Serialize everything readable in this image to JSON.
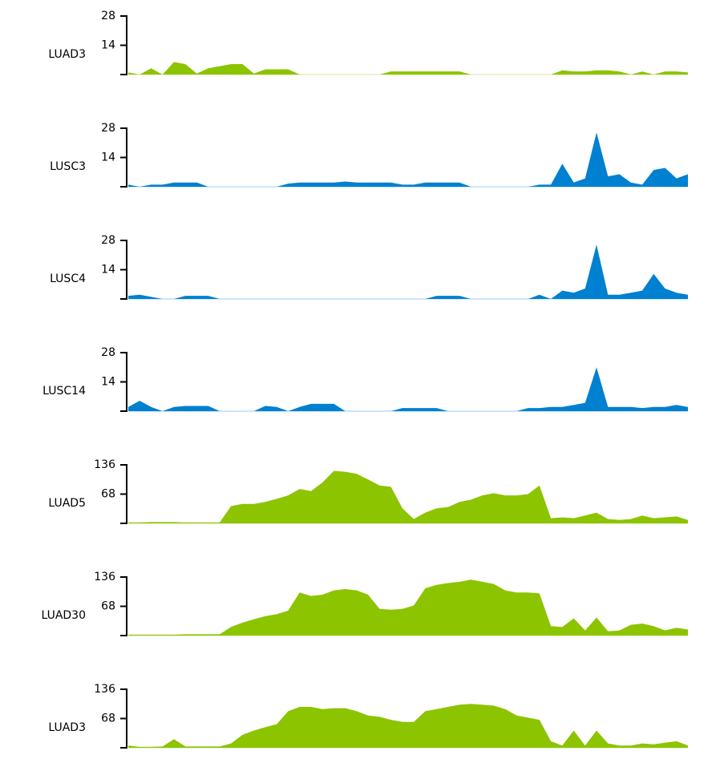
{
  "chart_data": [
    {
      "type": "area",
      "ylabel": "LUAD3",
      "color": "#8cc400",
      "ylim": [
        0,
        28
      ],
      "yticks": [
        14,
        28
      ],
      "values": [
        1,
        0,
        3,
        0,
        6,
        5,
        0.5,
        3,
        4,
        5,
        5,
        0.5,
        2.5,
        2.5,
        2.5,
        0,
        0,
        0,
        0,
        0,
        0,
        0,
        0,
        1.5,
        1.5,
        1.5,
        1.5,
        1.5,
        1.5,
        1.5,
        0,
        0,
        0,
        0,
        0,
        0,
        0,
        0,
        2,
        1.5,
        1.5,
        2,
        2,
        1.5,
        0,
        1.5,
        0,
        1.5,
        1.5,
        1
      ]
    },
    {
      "type": "area",
      "ylabel": "LUSC3",
      "color": "#0080d0",
      "ylim": [
        0,
        28
      ],
      "yticks": [
        14,
        28
      ],
      "values": [
        1,
        0,
        1,
        1,
        2,
        2,
        2,
        0,
        0,
        0,
        0,
        0,
        0,
        0,
        1.5,
        2,
        2,
        2,
        2,
        2.5,
        2,
        2,
        2,
        2,
        1,
        1,
        2,
        2,
        2,
        2,
        0,
        0,
        0,
        0,
        0,
        0,
        1,
        1,
        11,
        2,
        4,
        26,
        5,
        6,
        2,
        1,
        8,
        9,
        4,
        6
      ]
    },
    {
      "type": "area",
      "ylabel": "LUSC4",
      "color": "#0080d0",
      "ylim": [
        0,
        28
      ],
      "yticks": [
        14,
        28
      ],
      "values": [
        1.5,
        2,
        1,
        0,
        0,
        1.5,
        1.5,
        1.5,
        0,
        0,
        0,
        0,
        0,
        0,
        0,
        0,
        0,
        0,
        0,
        0,
        0,
        0,
        0,
        0,
        0,
        0,
        0,
        1.5,
        1.5,
        1.5,
        0,
        0,
        0,
        0,
        0,
        0,
        2,
        0,
        4,
        3,
        5,
        26,
        2,
        2,
        3,
        4,
        12,
        5,
        3,
        2
      ]
    },
    {
      "type": "area",
      "ylabel": "LUSC14",
      "color": "#0080d0",
      "ylim": [
        0,
        28
      ],
      "yticks": [
        14,
        28
      ],
      "values": [
        2,
        5,
        2,
        0,
        2,
        2.5,
        2.5,
        2.5,
        0,
        0,
        0,
        0,
        2.5,
        2,
        0,
        2,
        3.5,
        3.5,
        3.5,
        0,
        0,
        0,
        0,
        0,
        1.5,
        1.5,
        1.5,
        1.5,
        0,
        0,
        0,
        0,
        0,
        0,
        0,
        1.5,
        1.5,
        2,
        2,
        3,
        4,
        21,
        2,
        2,
        2,
        1.5,
        2,
        2,
        3,
        2
      ]
    },
    {
      "type": "area",
      "ylabel": "LUAD5",
      "color": "#8cc400",
      "ylim": [
        0,
        136
      ],
      "yticks": [
        68,
        136
      ],
      "values": [
        2,
        2,
        3,
        3,
        3,
        2,
        2,
        2,
        2,
        40,
        45,
        45,
        50,
        57,
        65,
        80,
        75,
        95,
        122,
        120,
        115,
        102,
        88,
        85,
        35,
        10,
        25,
        35,
        38,
        50,
        55,
        65,
        70,
        65,
        65,
        68,
        88,
        12,
        14,
        12,
        18,
        25,
        10,
        8,
        10,
        18,
        12,
        14,
        16,
        8
      ]
    },
    {
      "type": "area",
      "ylabel": "LUAD30",
      "color": "#8cc400",
      "ylim": [
        0,
        136
      ],
      "yticks": [
        68,
        136
      ],
      "values": [
        2,
        2,
        2,
        2,
        2,
        3,
        3,
        3,
        3,
        20,
        30,
        38,
        45,
        50,
        58,
        100,
        92,
        95,
        105,
        108,
        105,
        95,
        62,
        60,
        62,
        70,
        110,
        118,
        122,
        125,
        130,
        125,
        120,
        105,
        100,
        100,
        98,
        22,
        20,
        40,
        12,
        42,
        10,
        12,
        25,
        28,
        22,
        12,
        18,
        14
      ]
    },
    {
      "type": "area",
      "ylabel": "LUAD3",
      "color": "#8cc400",
      "ylim": [
        0,
        136
      ],
      "yticks": [
        68,
        136
      ],
      "values": [
        5,
        2,
        2,
        3,
        20,
        3,
        3,
        3,
        3,
        10,
        30,
        40,
        48,
        55,
        85,
        95,
        95,
        90,
        92,
        92,
        85,
        75,
        72,
        65,
        60,
        60,
        85,
        90,
        95,
        100,
        102,
        100,
        98,
        90,
        75,
        70,
        65,
        15,
        5,
        40,
        5,
        40,
        10,
        5,
        5,
        10,
        8,
        12,
        15,
        5
      ]
    }
  ]
}
